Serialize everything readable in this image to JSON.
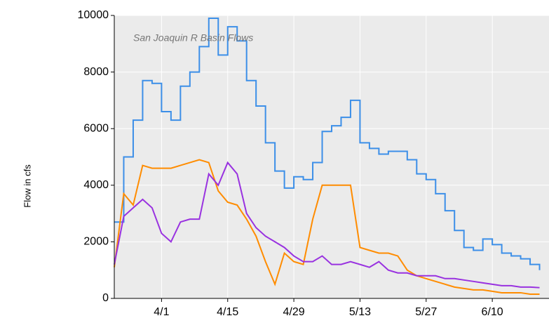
{
  "chart_data": {
    "type": "line",
    "title": "San Joaquin R Basin Flows",
    "ylabel": "Flow in cfs",
    "x": [
      "3/22",
      "3/24",
      "3/26",
      "3/28",
      "3/30",
      "4/1",
      "4/3",
      "4/5",
      "4/7",
      "4/9",
      "4/11",
      "4/13",
      "4/15",
      "4/17",
      "4/19",
      "4/21",
      "4/23",
      "4/25",
      "4/27",
      "4/29",
      "5/1",
      "5/3",
      "5/5",
      "5/7",
      "5/9",
      "5/11",
      "5/13",
      "5/15",
      "5/17",
      "5/19",
      "5/21",
      "5/23",
      "5/25",
      "5/27",
      "5/29",
      "5/31",
      "6/2",
      "6/4",
      "6/6",
      "6/8",
      "6/10",
      "6/12",
      "6/14",
      "6/16",
      "6/18",
      "6/20"
    ],
    "series": [
      {
        "color": "#3c8fe8",
        "step": true,
        "values": [
          2700,
          5000,
          6300,
          7700,
          7600,
          6600,
          6300,
          7500,
          8000,
          8900,
          9900,
          8600,
          9600,
          9100,
          7700,
          6800,
          5500,
          4500,
          3900,
          4300,
          4200,
          4800,
          5900,
          6100,
          6400,
          7000,
          5500,
          5300,
          5100,
          5200,
          5200,
          4900,
          4400,
          4200,
          3700,
          3100,
          2400,
          1800,
          1700,
          2100,
          1900,
          1600,
          1500,
          1400,
          1200,
          1000
        ]
      },
      {
        "color": "#ff8c00",
        "values": [
          1100,
          3700,
          3300,
          4700,
          4600,
          4600,
          4600,
          4700,
          4800,
          4900,
          4800,
          3800,
          3400,
          3300,
          2800,
          2200,
          1300,
          500,
          1600,
          1300,
          1200,
          2800,
          4000,
          4000,
          4000,
          4000,
          1800,
          1700,
          1600,
          1600,
          1500,
          1000,
          800,
          700,
          600,
          500,
          400,
          350,
          300,
          300,
          250,
          200,
          200,
          200,
          150,
          150
        ]
      },
      {
        "color": "#9932e0",
        "values": [
          1200,
          2900,
          3200,
          3500,
          3200,
          2300,
          2000,
          2700,
          2800,
          2800,
          4400,
          4000,
          4800,
          4400,
          3000,
          2500,
          2200,
          2000,
          1800,
          1500,
          1300,
          1300,
          1500,
          1200,
          1200,
          1300,
          1200,
          1100,
          1300,
          1000,
          900,
          900,
          800,
          800,
          800,
          700,
          700,
          650,
          600,
          550,
          500,
          450,
          450,
          400,
          400,
          380
        ]
      }
    ],
    "xlim": [
      "3/22",
      "6/22"
    ],
    "xticks": [
      "4/1",
      "4/15",
      "4/29",
      "5/13",
      "5/27",
      "6/10"
    ],
    "ylim": [
      0,
      10000
    ],
    "yticks": [
      0,
      2000,
      4000,
      6000,
      8000,
      10000
    ],
    "grid": true
  }
}
